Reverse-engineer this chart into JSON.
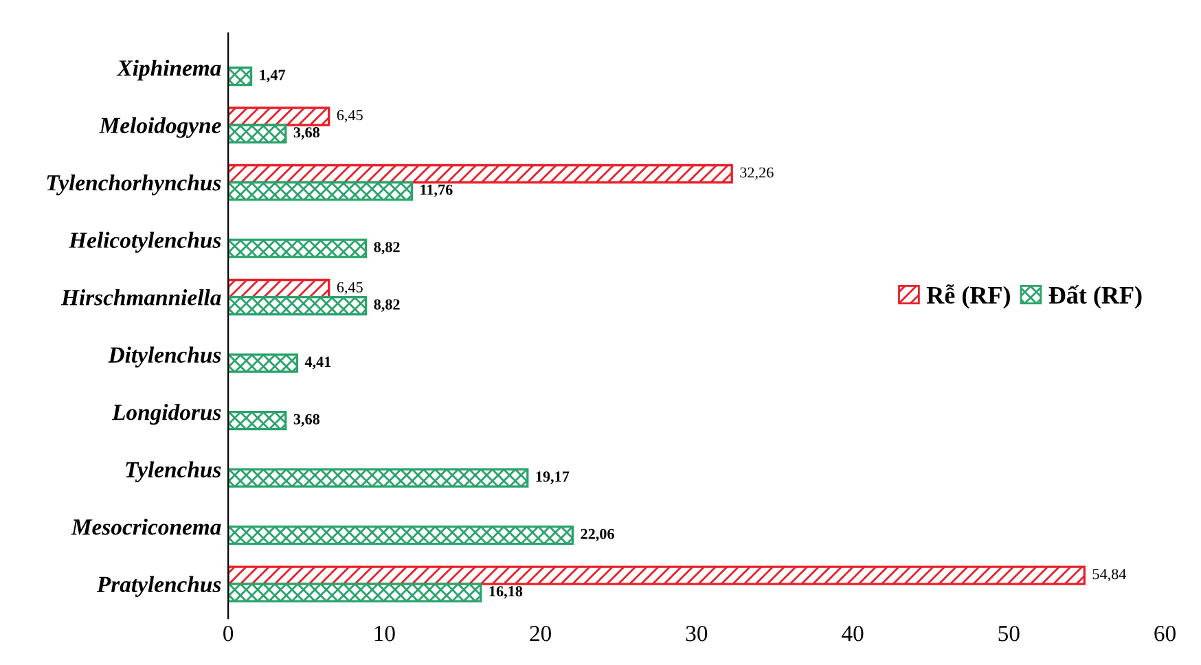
{
  "chart_data": {
    "type": "bar",
    "orientation": "horizontal",
    "categories": [
      "Xiphinema",
      "Meloidogyne",
      "Tylenchorhynchus",
      "Helicotylenchus",
      "Hirschmanniella",
      "Ditylenchus",
      "Longidorus",
      "Tylenchus",
      "Mesocriconema",
      "Pratylenchus"
    ],
    "series": [
      {
        "name": "Rễ (RF)",
        "color": "#e8202a",
        "values": [
          null,
          6.45,
          32.26,
          null,
          6.45,
          null,
          null,
          null,
          null,
          54.84
        ],
        "value_labels": [
          null,
          "6,45",
          "32,26",
          null,
          "6,45",
          null,
          null,
          null,
          null,
          "54,84"
        ]
      },
      {
        "name": "Đất (RF)",
        "color": "#2aa36b",
        "values": [
          1.47,
          3.68,
          11.76,
          8.82,
          8.82,
          4.41,
          3.68,
          19.17,
          22.06,
          16.18
        ],
        "value_labels": [
          "1,47",
          "3,68",
          "11,76",
          "8,82",
          "8,82",
          "4,41",
          "3,68",
          "19,17",
          "22,06",
          "16,18"
        ]
      }
    ],
    "xlim": [
      0,
      60
    ],
    "xticks": [
      0,
      10,
      20,
      30,
      40,
      50,
      60
    ],
    "grid": false,
    "legend": "right"
  }
}
